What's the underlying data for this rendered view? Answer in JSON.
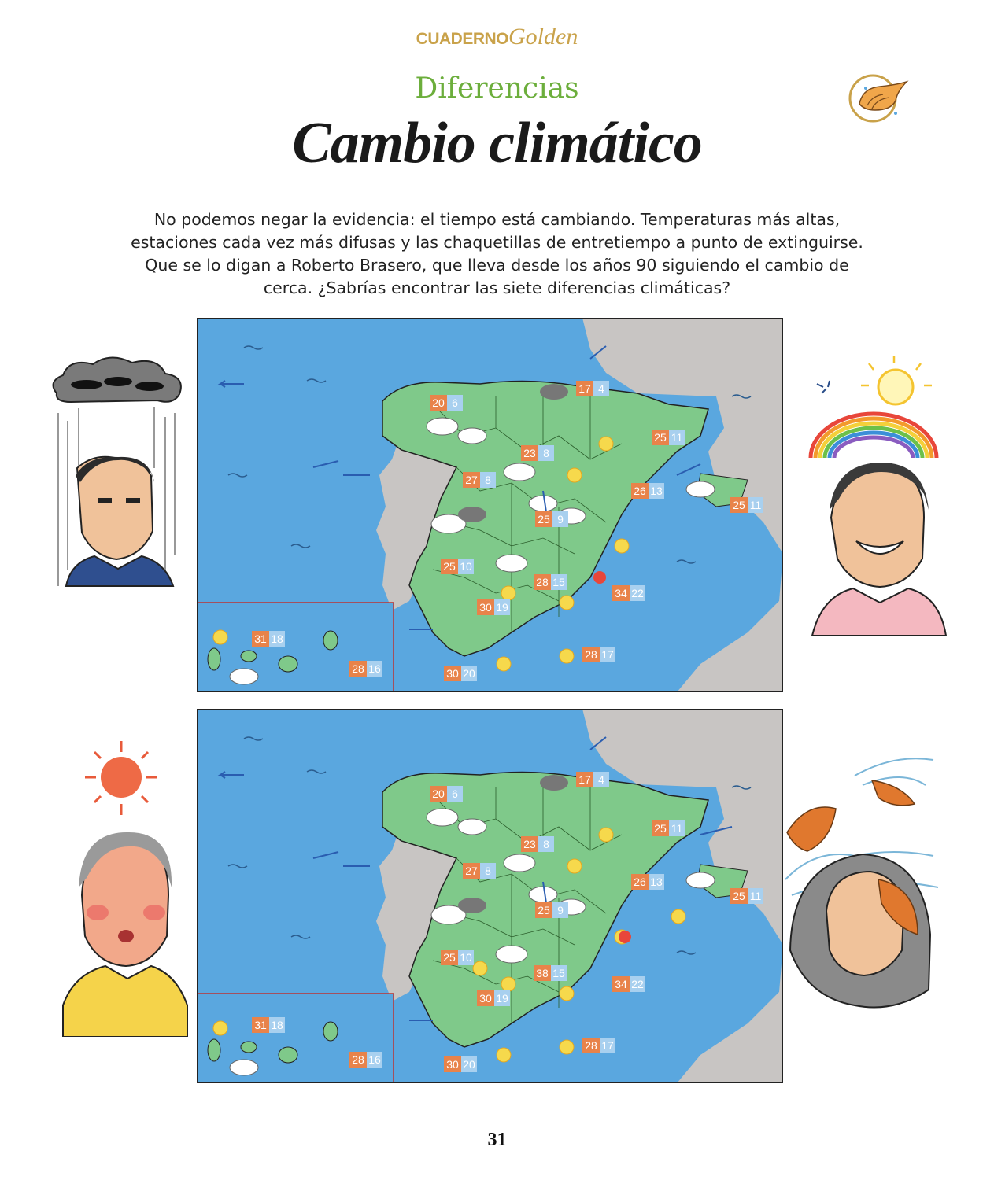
{
  "brand": {
    "part1": "CUADERNO",
    "part2": "Golden"
  },
  "section": "Diferencias",
  "title": "Cambio climático",
  "intro": [
    "No podemos negar la evidencia: el tiempo está cambiando. Temperaturas más altas,",
    "estaciones cada vez más difusas y las chaquetillas de entretiempo a punto de extinguirse.",
    "Que se lo digan a Roberto Brasero, que lleva desde los años 90 siguiendo el cambio de",
    "cerca. ¿Sabrías encontrar las siete diferencias climáticas?"
  ],
  "page_number": "31",
  "icons": {
    "badge": "conch-shell-icon"
  },
  "colors": {
    "sea": "#5aa7df",
    "land": "#7fc98a",
    "foreign": "#c8c5c3",
    "high": "#e8834a",
    "low": "#a8d0ef",
    "green_title": "#6cae3c",
    "gold": "#c9a24a"
  },
  "maps": [
    {
      "temps": [
        {
          "hi": "20",
          "lo": "6"
        },
        {
          "hi": "17",
          "lo": "4"
        },
        {
          "hi": "25",
          "lo": "11"
        },
        {
          "hi": "23",
          "lo": "8"
        },
        {
          "hi": "27",
          "lo": "8"
        },
        {
          "hi": "26",
          "lo": "13"
        },
        {
          "hi": "25",
          "lo": "11"
        },
        {
          "hi": "25",
          "lo": "9"
        },
        {
          "hi": "25",
          "lo": "10"
        },
        {
          "hi": "28",
          "lo": "15"
        },
        {
          "hi": "34",
          "lo": "22"
        },
        {
          "hi": "30",
          "lo": "19"
        },
        {
          "hi": "31",
          "lo": "18"
        },
        {
          "hi": "28",
          "lo": "17"
        },
        {
          "hi": "28",
          "lo": "16"
        },
        {
          "hi": "30",
          "lo": "20"
        }
      ]
    },
    {
      "temps": [
        {
          "hi": "20",
          "lo": "6"
        },
        {
          "hi": "17",
          "lo": "4"
        },
        {
          "hi": "25",
          "lo": "11"
        },
        {
          "hi": "23",
          "lo": "8"
        },
        {
          "hi": "27",
          "lo": "8"
        },
        {
          "hi": "26",
          "lo": "13"
        },
        {
          "hi": "25",
          "lo": "11"
        },
        {
          "hi": "25",
          "lo": "9"
        },
        {
          "hi": "25",
          "lo": "10"
        },
        {
          "hi": "38",
          "lo": "15"
        },
        {
          "hi": "34",
          "lo": "22"
        },
        {
          "hi": "30",
          "lo": "19"
        },
        {
          "hi": "31",
          "lo": "18"
        },
        {
          "hi": "28",
          "lo": "17"
        },
        {
          "hi": "28",
          "lo": "16"
        },
        {
          "hi": "30",
          "lo": "20"
        }
      ]
    }
  ]
}
